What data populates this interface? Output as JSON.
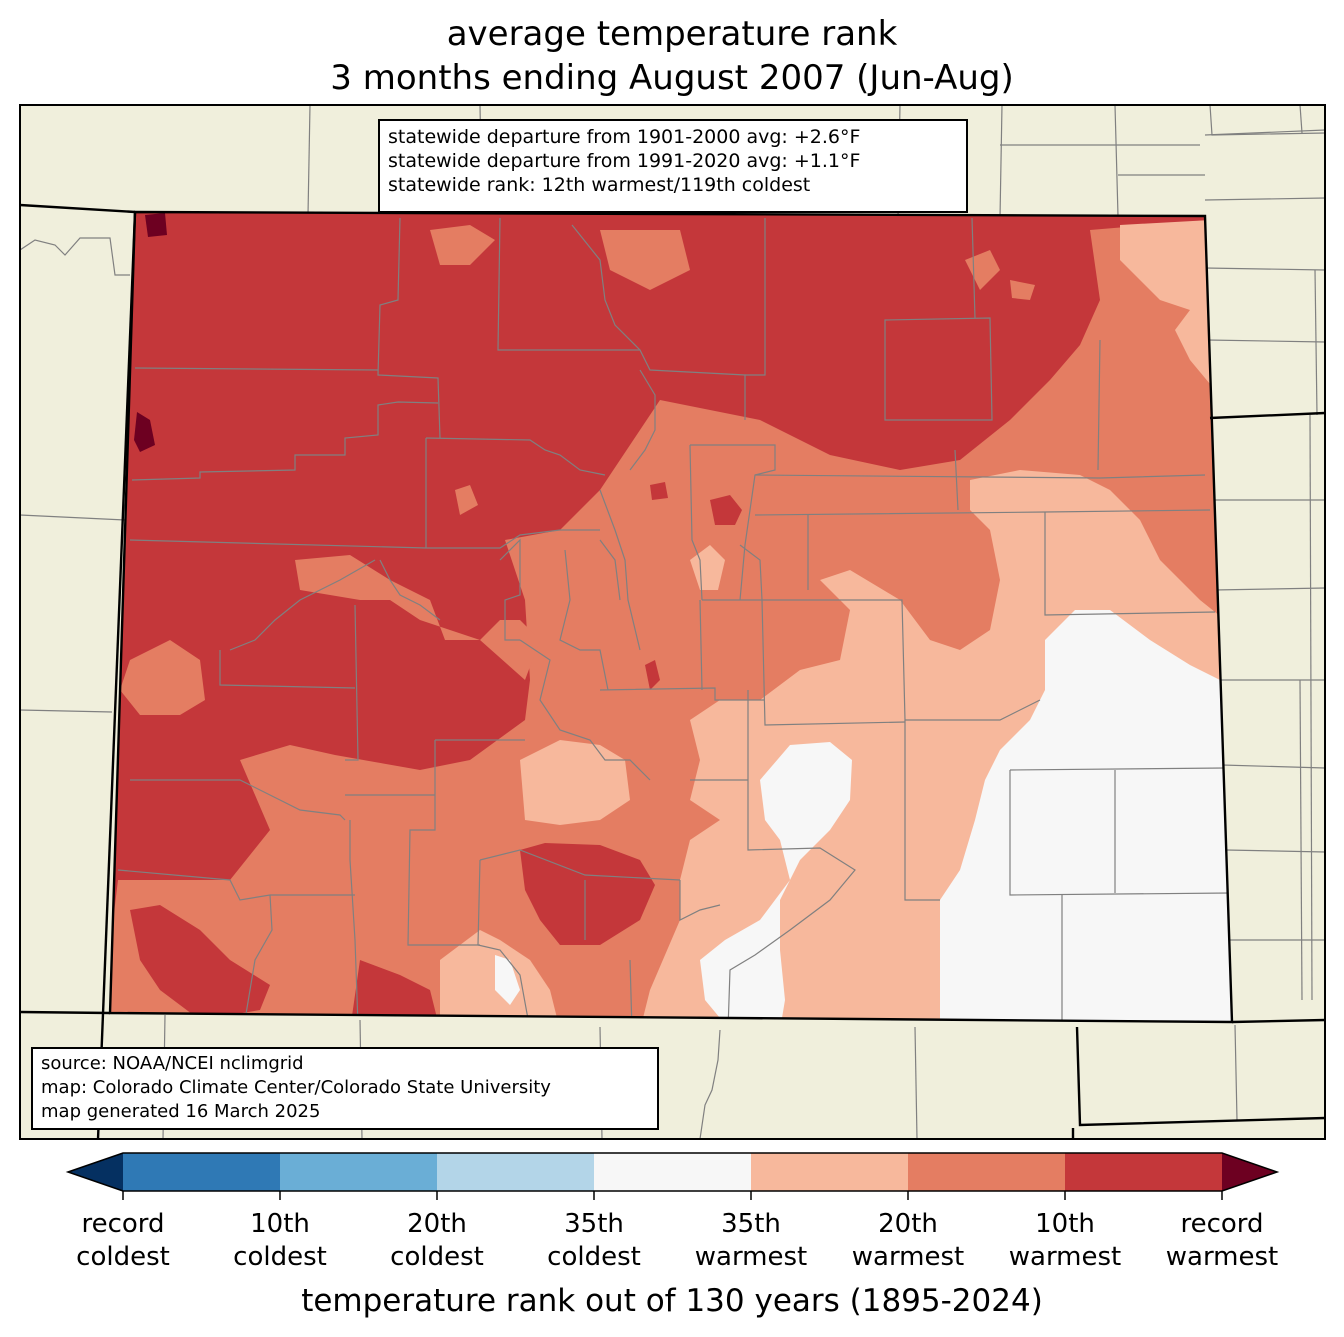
{
  "title": {
    "line1": "average temperature rank",
    "line2": "3 months ending August 2007 (Jun-Aug)"
  },
  "stats": {
    "line1": "statewide departure from 1901-2000 avg: +2.6°F",
    "line2": "statewide departure from 1991-2020 avg: +1.1°F",
    "line3": "statewide rank: 12th warmest/119th coldest"
  },
  "source": {
    "line1": "source: NOAA/NCEI nclimgrid",
    "line2": "map: Colorado Climate Center/Colorado State University",
    "line3": "map generated 16 March 2025"
  },
  "colorbar": {
    "label": "temperature rank out of 130 years (1895-2024)",
    "colors": {
      "record_coldest": "#053061",
      "tenth_coldest": "#2f79b5",
      "twentieth_coldest": "#6aaed6",
      "thirtyfifth_coldest": "#b3d5e8",
      "normal": "#f7f7f7",
      "thirtyfifth_warmest": "#f7b89c",
      "twentieth_warmest": "#e47d62",
      "tenth_warmest": "#c4373a",
      "record_warmest": "#6d0021"
    },
    "ticks": [
      {
        "line1": "record",
        "line2": "coldest"
      },
      {
        "line1": "10th",
        "line2": "coldest"
      },
      {
        "line1": "20th",
        "line2": "coldest"
      },
      {
        "line1": "35th",
        "line2": "coldest"
      },
      {
        "line1": "35th",
        "line2": "warmest"
      },
      {
        "line1": "20th",
        "line2": "warmest"
      },
      {
        "line1": "10th",
        "line2": "warmest"
      },
      {
        "line1": "record",
        "line2": "warmest"
      }
    ]
  },
  "map_colors": {
    "land": "#f0efdc",
    "county_lines": "#808080",
    "state_lines": "#000000"
  }
}
